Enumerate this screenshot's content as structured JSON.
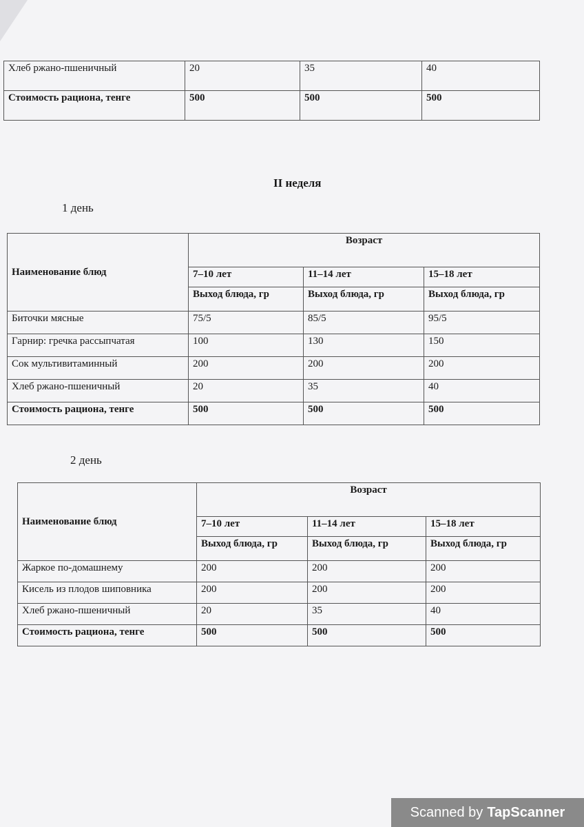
{
  "top_table": {
    "rows": [
      {
        "name": "Хлеб ржано-пшеничный",
        "v": [
          "20",
          "35",
          "40"
        ],
        "bold": false
      },
      {
        "name": "Стоимость рациона, тенге",
        "v": [
          "500",
          "500",
          "500"
        ],
        "bold": true
      }
    ]
  },
  "week_title": "II неделя",
  "days": [
    {
      "title": "1 день",
      "header": {
        "dish": "Наименование блюд",
        "age": "Возраст",
        "ages": [
          "7–10 лет",
          "11–14 лет",
          "15–18 лет"
        ],
        "yield": "Выход блюда, гр"
      },
      "rows": [
        {
          "name": "Биточки мясные",
          "v": [
            "75/5",
            "85/5",
            "95/5"
          ],
          "bold": false
        },
        {
          "name": "Гарнир: гречка рассыпчатая",
          "v": [
            "100",
            "130",
            "150"
          ],
          "bold": false
        },
        {
          "name": "Сок мультивитаминный",
          "v": [
            "200",
            "200",
            "200"
          ],
          "bold": false
        },
        {
          "name": "Хлеб ржано-пшеничный",
          "v": [
            "20",
            "35",
            "40"
          ],
          "bold": false
        },
        {
          "name": "Стоимость рациона, тенге",
          "v": [
            "500",
            "500",
            "500"
          ],
          "bold": true
        }
      ]
    },
    {
      "title": "2 день",
      "header": {
        "dish": "Наименование блюд",
        "age": "Возраст",
        "ages": [
          "7–10 лет",
          "11–14 лет",
          "15–18 лет"
        ],
        "yield": "Выход блюда, гр"
      },
      "rows": [
        {
          "name": "Жаркое по-домашнему",
          "v": [
            "200",
            "200",
            "200"
          ],
          "bold": false
        },
        {
          "name": "Кисель из плодов шиповника",
          "v": [
            "200",
            "200",
            "200"
          ],
          "bold": false
        },
        {
          "name": "Хлеб ржано-пшеничный",
          "v": [
            "20",
            "35",
            "40"
          ],
          "bold": false
        },
        {
          "name": "Стоимость рациона, тенге",
          "v": [
            "500",
            "500",
            "500"
          ],
          "bold": true
        }
      ]
    }
  ],
  "watermark": {
    "prefix": "Scanned by",
    "brand": "TapScanner"
  }
}
